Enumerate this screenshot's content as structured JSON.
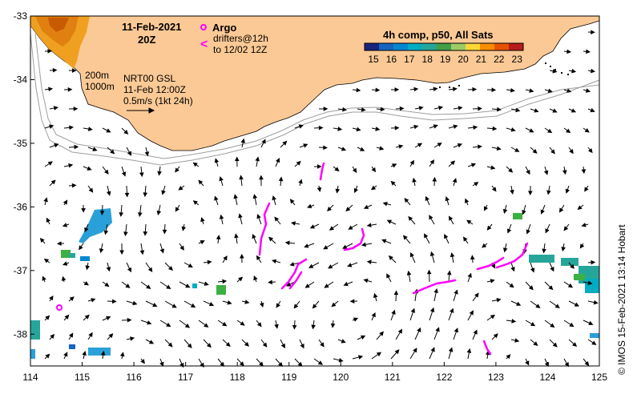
{
  "title": {
    "date": "11-Feb-2021",
    "time": "20Z"
  },
  "legend": {
    "argo_label": "Argo",
    "drifters_line1": "drifters@12h",
    "drifters_line2": "to 12/02 12Z",
    "drifter_glyph": "<"
  },
  "annotations": {
    "contour_200": "200m",
    "contour_1000": "1000m",
    "product": "NRT00 GSL",
    "product_time": "11-Feb 12:00Z",
    "scale_vector": "0.5m/s (1kt 24h)"
  },
  "colorbar": {
    "title": "4h comp, p50, All Sats",
    "ticks": [
      "15",
      "16",
      "17",
      "18",
      "19",
      "20",
      "21",
      "22",
      "23"
    ],
    "colors": [
      "#1a237e",
      "#1565c0",
      "#0288d1",
      "#00acc1",
      "#26a69a",
      "#43a047",
      "#9ccc65",
      "#fdd835",
      "#fb8c00",
      "#e65100",
      "#b71c1c"
    ]
  },
  "axes": {
    "x_ticks": [
      "114",
      "115",
      "116",
      "117",
      "118",
      "119",
      "120",
      "121",
      "122",
      "123",
      "124",
      "125"
    ],
    "y_ticks": [
      "-33",
      "-34",
      "-35",
      "-36",
      "-37",
      "-38"
    ],
    "lon_range": [
      114,
      125
    ],
    "lat_range": [
      -38.5,
      -33
    ]
  },
  "credit": "©  IMOS 15-Feb-2021 13:14 Hobart",
  "colors": {
    "land": "#fbc995",
    "drifter": "#ff00ff",
    "isobath": "#9e9e9e",
    "arrow": "#000000"
  },
  "icons": {
    "argo": "circle-icon",
    "drifter": "chevron-left-icon"
  }
}
